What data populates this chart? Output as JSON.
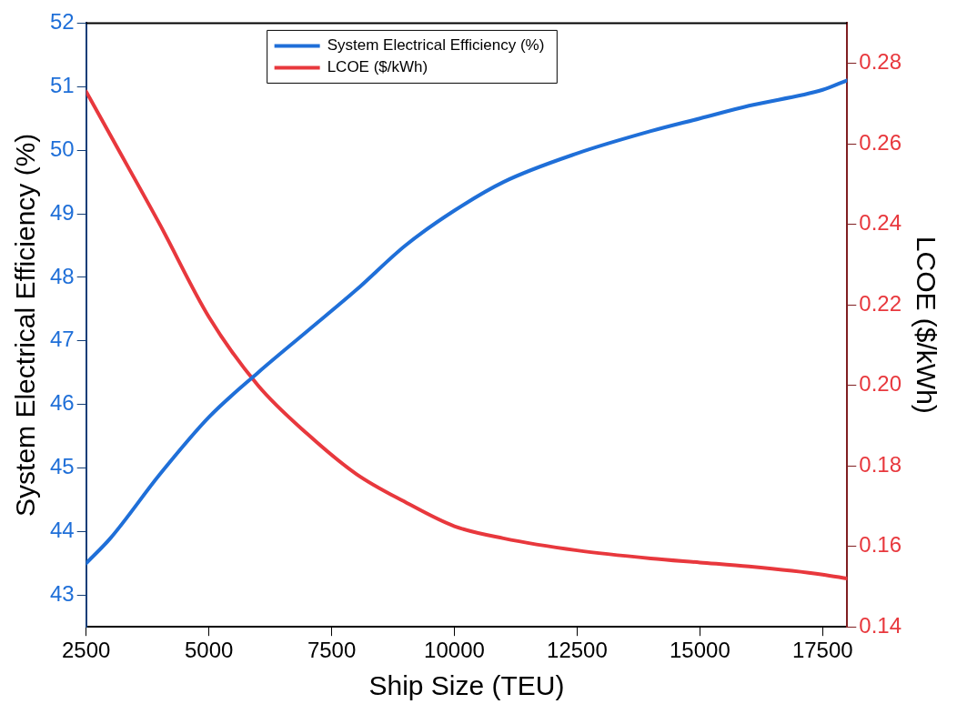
{
  "chart_data": {
    "type": "line",
    "xlabel": "Ship Size (TEU)",
    "ylabel": "System Electrical Efficiency (%)",
    "y2label": "LCOE ($/kWh)",
    "xlim": [
      2500,
      18000
    ],
    "xticks": [
      2500,
      5000,
      7500,
      10000,
      12500,
      15000,
      17500
    ],
    "ylim": [
      42.5,
      52
    ],
    "yticks": [
      43,
      44,
      45,
      46,
      47,
      48,
      49,
      50,
      51,
      52
    ],
    "y2lim": [
      0.14,
      0.29
    ],
    "y2ticks": [
      0.14,
      0.16,
      0.18,
      {
        "value": 0.2,
        "label": "0.20"
      },
      0.22,
      0.24,
      0.26,
      0.28
    ],
    "legend": "top",
    "grid": false,
    "marker": "none",
    "line_style": "solid",
    "series": [
      {
        "name": "System Electrical Efficiency (%)",
        "color": "#1f6fd8",
        "x": [
          2500,
          3000,
          4000,
          5000,
          6000,
          7000,
          8000,
          9000,
          10000,
          11000,
          12500,
          14000,
          15000,
          16000,
          17500,
          18000
        ],
        "values": [
          43.5,
          43.9,
          44.9,
          45.8,
          46.5,
          47.15,
          47.8,
          48.5,
          49.05,
          49.5,
          49.95,
          50.3,
          50.5,
          50.7,
          50.95,
          51.1
        ]
      },
      {
        "name": "LCOE ($/kWh)",
        "color": "#e8383d",
        "axis": "y2",
        "x": [
          2500,
          3000,
          4000,
          5000,
          6000,
          7000,
          8000,
          9000,
          10000,
          11000,
          12500,
          14000,
          15000,
          16000,
          17500,
          18000
        ],
        "values": [
          0.273,
          0.262,
          0.24,
          0.217,
          0.2,
          0.188,
          0.178,
          0.171,
          0.165,
          0.162,
          0.159,
          0.157,
          0.156,
          0.155,
          0.153,
          0.152
        ]
      }
    ]
  }
}
